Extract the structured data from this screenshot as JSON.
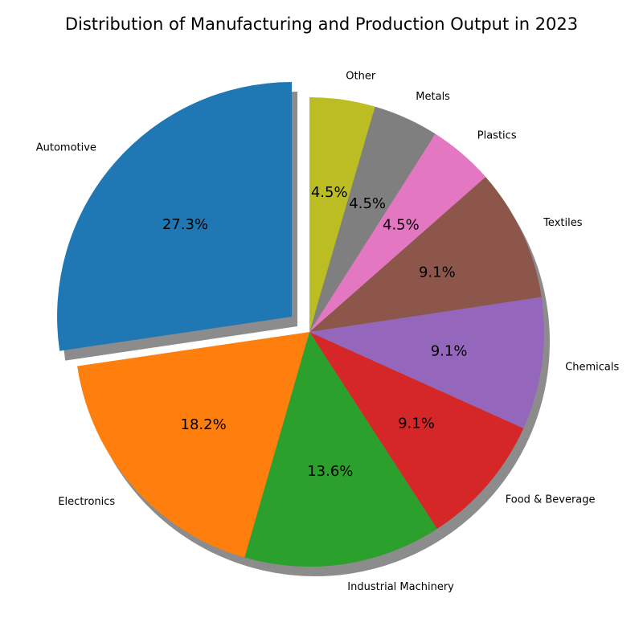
{
  "chart_data": {
    "type": "pie",
    "title": "Distribution of Manufacturing and Production Output in 2023",
    "categories": [
      "Automotive",
      "Electronics",
      "Industrial Machinery",
      "Food & Beverage",
      "Chemicals",
      "Textiles",
      "Plastics",
      "Metals",
      "Other"
    ],
    "values": [
      27.3,
      18.2,
      13.6,
      9.1,
      9.1,
      9.1,
      4.5,
      4.5,
      4.5
    ],
    "percent_labels": [
      "27.3%",
      "18.2%",
      "13.6%",
      "9.1%",
      "9.1%",
      "9.1%",
      "4.5%",
      "4.5%",
      "4.5%"
    ],
    "colors": [
      "#1f77b4",
      "#ff7f0e",
      "#2ca02c",
      "#d62728",
      "#9467bd",
      "#8c564b",
      "#e377c2",
      "#7f7f7f",
      "#bcbd22"
    ],
    "exploded": [
      "Automotive"
    ],
    "shadow": true,
    "start_angle": "top, counter-clockwise",
    "legend": "none"
  }
}
